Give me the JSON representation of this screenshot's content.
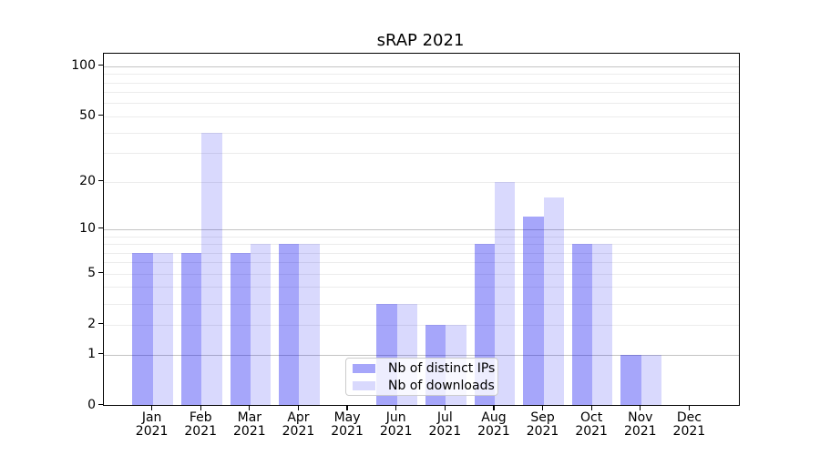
{
  "title": "sRAP 2021",
  "chart_data": {
    "type": "bar",
    "title": "sRAP 2021",
    "yscale": "log1p",
    "ylim": [
      0,
      119
    ],
    "categories": [
      "Jan",
      "Feb",
      "Mar",
      "Apr",
      "May",
      "Jun",
      "Jul",
      "Aug",
      "Sep",
      "Oct",
      "Nov",
      "Dec"
    ],
    "year_label": "2021",
    "series": [
      {
        "name": "Nb of distinct IPs",
        "color": "#0000f0",
        "alpha": 0.35,
        "values": [
          7,
          7,
          7,
          8,
          0,
          3,
          2,
          8,
          12,
          8,
          1,
          0
        ]
      },
      {
        "name": "Nb of downloads",
        "color": "#0000f0",
        "alpha": 0.15,
        "values": [
          7,
          40,
          8,
          8,
          0,
          3,
          2,
          20,
          16,
          8,
          1,
          0
        ]
      }
    ],
    "yticks": [
      100,
      50,
      20,
      10,
      5,
      2,
      1,
      0
    ],
    "major_gridlines": [
      1,
      10,
      100
    ],
    "minor_gridlines": [
      2,
      3,
      4,
      5,
      6,
      7,
      8,
      9,
      20,
      30,
      40,
      50,
      60,
      70,
      80,
      90
    ],
    "grid_color_major": "#c4c4c4",
    "grid_color_minor": "#ececec",
    "legend_position": "lower center",
    "grid": true
  }
}
